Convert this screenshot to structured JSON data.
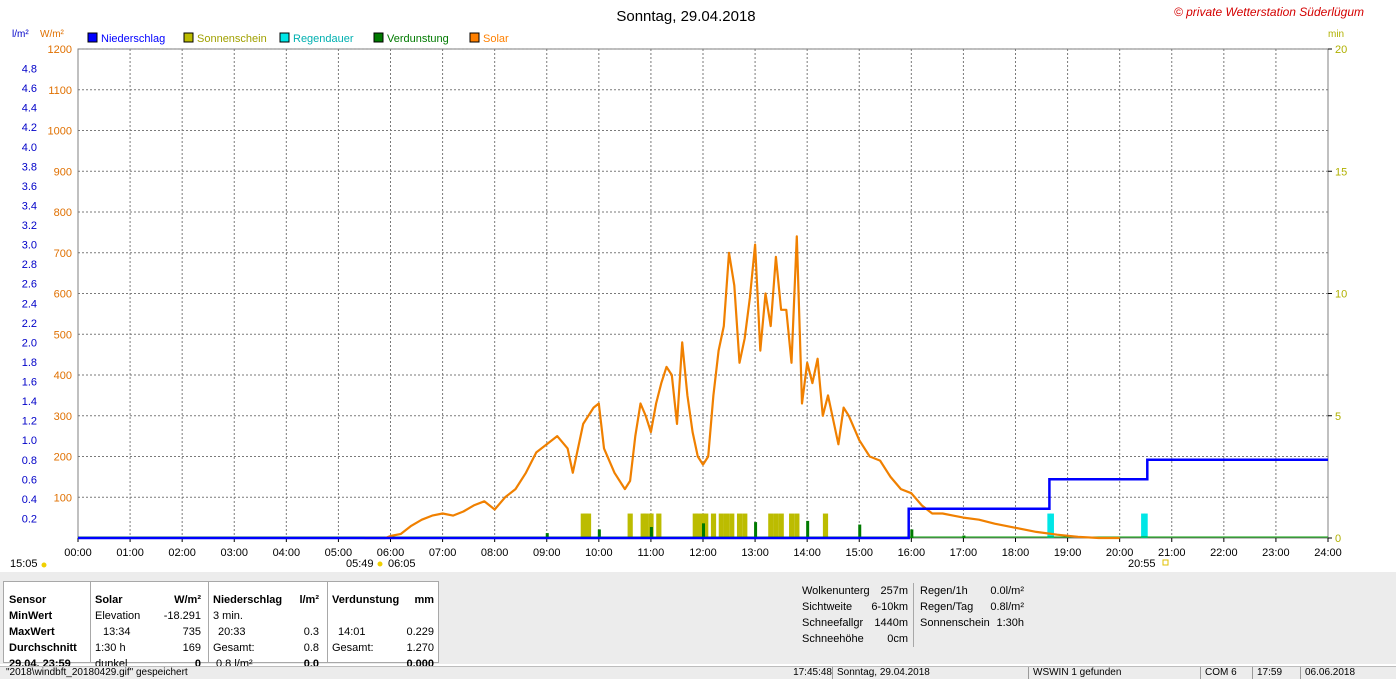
{
  "chart_data": {
    "type": "line",
    "title": "Sonntag, 29.04.2018",
    "copyright": "© private Wetterstation Süderlügum",
    "left_axis_units": [
      "l/m²",
      "W/m²"
    ],
    "right_axis_unit": "min",
    "solar_ylim": [
      0,
      1200
    ],
    "solar_ticks": [
      100,
      200,
      300,
      400,
      500,
      600,
      700,
      800,
      900,
      1000,
      1100,
      1200
    ],
    "rain_ylim": [
      0,
      5.0
    ],
    "rain_ticks": [
      "0.2",
      "0.4",
      "0.6",
      "0.8",
      "1.0",
      "1.2",
      "1.4",
      "1.6",
      "1.8",
      "2.0",
      "2.2",
      "2.4",
      "2.6",
      "2.8",
      "3.0",
      "3.2",
      "3.4",
      "3.6",
      "3.8",
      "4.0",
      "4.2",
      "4.4",
      "4.6",
      "4.8"
    ],
    "right_ylim": [
      0,
      20
    ],
    "right_ticks": [
      "0",
      "5",
      "10",
      "15",
      "20"
    ],
    "x_ticks": [
      "00:00",
      "01:00",
      "02:00",
      "03:00",
      "04:00",
      "05:00",
      "06:00",
      "07:00",
      "08:00",
      "09:00",
      "10:00",
      "11:00",
      "12:00",
      "13:00",
      "14:00",
      "15:00",
      "16:00",
      "17:00",
      "18:00",
      "19:00",
      "20:00",
      "21:00",
      "22:00",
      "23:00",
      "24:00"
    ],
    "grid": true,
    "legend": [
      {
        "name": "Niederschlag",
        "color": "#0000ff"
      },
      {
        "name": "Sonnenschein",
        "color": "#bcbc00"
      },
      {
        "name": "Regendauer",
        "color": "#00e6e6"
      },
      {
        "name": "Verdunstung",
        "color": "#007a00"
      },
      {
        "name": "Solar",
        "color": "#ff8000"
      }
    ],
    "solar_series": {
      "name": "Solar",
      "color": "#f08000",
      "x_hours": [
        5.5,
        5.9,
        6.0,
        6.2,
        6.4,
        6.6,
        6.8,
        7.0,
        7.2,
        7.4,
        7.6,
        7.8,
        8.0,
        8.2,
        8.4,
        8.6,
        8.8,
        9.0,
        9.2,
        9.4,
        9.5,
        9.7,
        9.9,
        10.0,
        10.1,
        10.3,
        10.5,
        10.6,
        10.7,
        10.8,
        10.9,
        11.0,
        11.1,
        11.2,
        11.3,
        11.4,
        11.5,
        11.6,
        11.7,
        11.8,
        11.9,
        12.0,
        12.1,
        12.2,
        12.3,
        12.4,
        12.5,
        12.6,
        12.7,
        12.8,
        12.9,
        13.0,
        13.1,
        13.2,
        13.3,
        13.4,
        13.5,
        13.6,
        13.7,
        13.8,
        13.9,
        14.0,
        14.1,
        14.2,
        14.3,
        14.4,
        14.5,
        14.6,
        14.7,
        14.8,
        15.0,
        15.2,
        15.4,
        15.6,
        15.8,
        16.0,
        16.2,
        16.4,
        16.6,
        16.8,
        17.0,
        17.3,
        17.6,
        18.0,
        18.4,
        18.8,
        19.2,
        19.6,
        20.0
      ],
      "y": [
        0,
        0,
        5,
        10,
        30,
        45,
        55,
        60,
        55,
        65,
        80,
        90,
        70,
        100,
        120,
        160,
        210,
        230,
        250,
        220,
        160,
        280,
        320,
        330,
        220,
        160,
        120,
        140,
        250,
        330,
        300,
        260,
        330,
        380,
        420,
        400,
        280,
        480,
        350,
        260,
        200,
        180,
        200,
        350,
        460,
        520,
        700,
        620,
        430,
        490,
        590,
        720,
        460,
        600,
        520,
        690,
        560,
        560,
        430,
        740,
        330,
        430,
        380,
        440,
        300,
        350,
        290,
        230,
        320,
        300,
        240,
        200,
        190,
        150,
        120,
        110,
        80,
        60,
        60,
        55,
        50,
        45,
        35,
        25,
        15,
        8,
        3,
        0,
        0
      ]
    },
    "rain_cumulative": {
      "name": "Niederschlag",
      "color": "#0000ff",
      "x_hours": [
        0,
        15.95,
        15.95,
        18.65,
        18.65,
        20.53,
        20.53,
        24
      ],
      "y": [
        0,
        0,
        0.3,
        0.3,
        0.6,
        0.6,
        0.8,
        0.8
      ]
    },
    "sunshine_bars_min": {
      "name": "Sonnenschein",
      "color": "#bcbc00",
      "x_hours": [
        9.7,
        9.75,
        9.8,
        10.6,
        10.85,
        10.9,
        11.0,
        11.15,
        11.85,
        11.9,
        12.0,
        12.05,
        12.2,
        12.35,
        12.45,
        12.55,
        12.7,
        12.8,
        13.3,
        13.4,
        13.5,
        13.7,
        13.8,
        14.35
      ],
      "values": [
        1,
        1,
        1,
        1,
        1,
        1,
        1,
        1,
        1,
        1,
        1,
        1,
        1,
        1,
        1,
        1,
        1,
        1,
        1,
        1,
        1,
        1,
        1,
        1
      ]
    },
    "rain_duration_bars_min": {
      "name": "Regendauer",
      "color": "#00e6e6",
      "x_hours": [
        18.65,
        18.7,
        20.45,
        20.5
      ],
      "values": [
        1,
        1,
        1,
        1
      ]
    },
    "evaporation_bars": {
      "name": "Verdunstung",
      "color": "#007a00",
      "x_hours": [
        9.0,
        10.0,
        11.0,
        12.0,
        13.0,
        14.0,
        15.0,
        16.0,
        17.0
      ],
      "values": [
        0.2,
        0.35,
        0.45,
        0.6,
        0.65,
        0.7,
        0.55,
        0.35,
        0.1
      ]
    },
    "sun_events": {
      "start_left": "15:05",
      "sunrise": "05:49",
      "sunrise2": "06:05",
      "sunset": "20:55"
    }
  },
  "table": {
    "col1": {
      "labels": [
        "Sensor",
        "MinWert",
        "MaxWert",
        "Durchschnitt",
        "29.04. 23:59"
      ]
    },
    "col2": {
      "header_name": "Solar",
      "header_unit": "W/m²",
      "rows": [
        {
          "a": "Elevation",
          "b": "-18.291"
        },
        {
          "a": "13:34",
          "b": "735"
        },
        {
          "a": "1:30 h",
          "b": "169"
        },
        {
          "a": "dunkel",
          "b": "0"
        }
      ]
    },
    "col3": {
      "header_name": "Niederschlag",
      "header_unit": "l/m²",
      "rows": [
        {
          "a": "3 min.",
          "b": ""
        },
        {
          "a": "20:33",
          "b": "0.3"
        },
        {
          "a": "Gesamt:",
          "b": "0.8"
        },
        {
          "a": "0.8 l/m²",
          "b": "0.0"
        }
      ]
    },
    "col4": {
      "header_name": "Verdunstung",
      "header_unit": "mm",
      "rows": [
        {
          "a": "",
          "b": ""
        },
        {
          "a": "14:01",
          "b": "0.229"
        },
        {
          "a": "Gesamt:",
          "b": "1.270"
        },
        {
          "a": "",
          "b": "0.000"
        }
      ]
    },
    "info_left": [
      {
        "label": "Wolkenunterg",
        "value": "257m"
      },
      {
        "label": "Sichtweite",
        "value": "6-10km"
      },
      {
        "label": "Schneefallgr",
        "value": "1440m"
      },
      {
        "label": "Schneehöhe",
        "value": "0cm"
      }
    ],
    "info_right": [
      {
        "label": "Regen/1h",
        "value": "0.0l/m²"
      },
      {
        "label": "Regen/Tag",
        "value": "0.8l/m²"
      },
      {
        "label": "Sonnenschein",
        "value": "1:30h"
      }
    ]
  },
  "statusbar": {
    "file": "\"2018\\windbft_20180429.gif\" gespeichert",
    "time1": "17:45:48",
    "date": "Sonntag, 29.04.2018",
    "wswin": "WSWIN 1 gefunden",
    "com": "COM 6",
    "time2": "17:59",
    "date2": "06.06.2018"
  }
}
